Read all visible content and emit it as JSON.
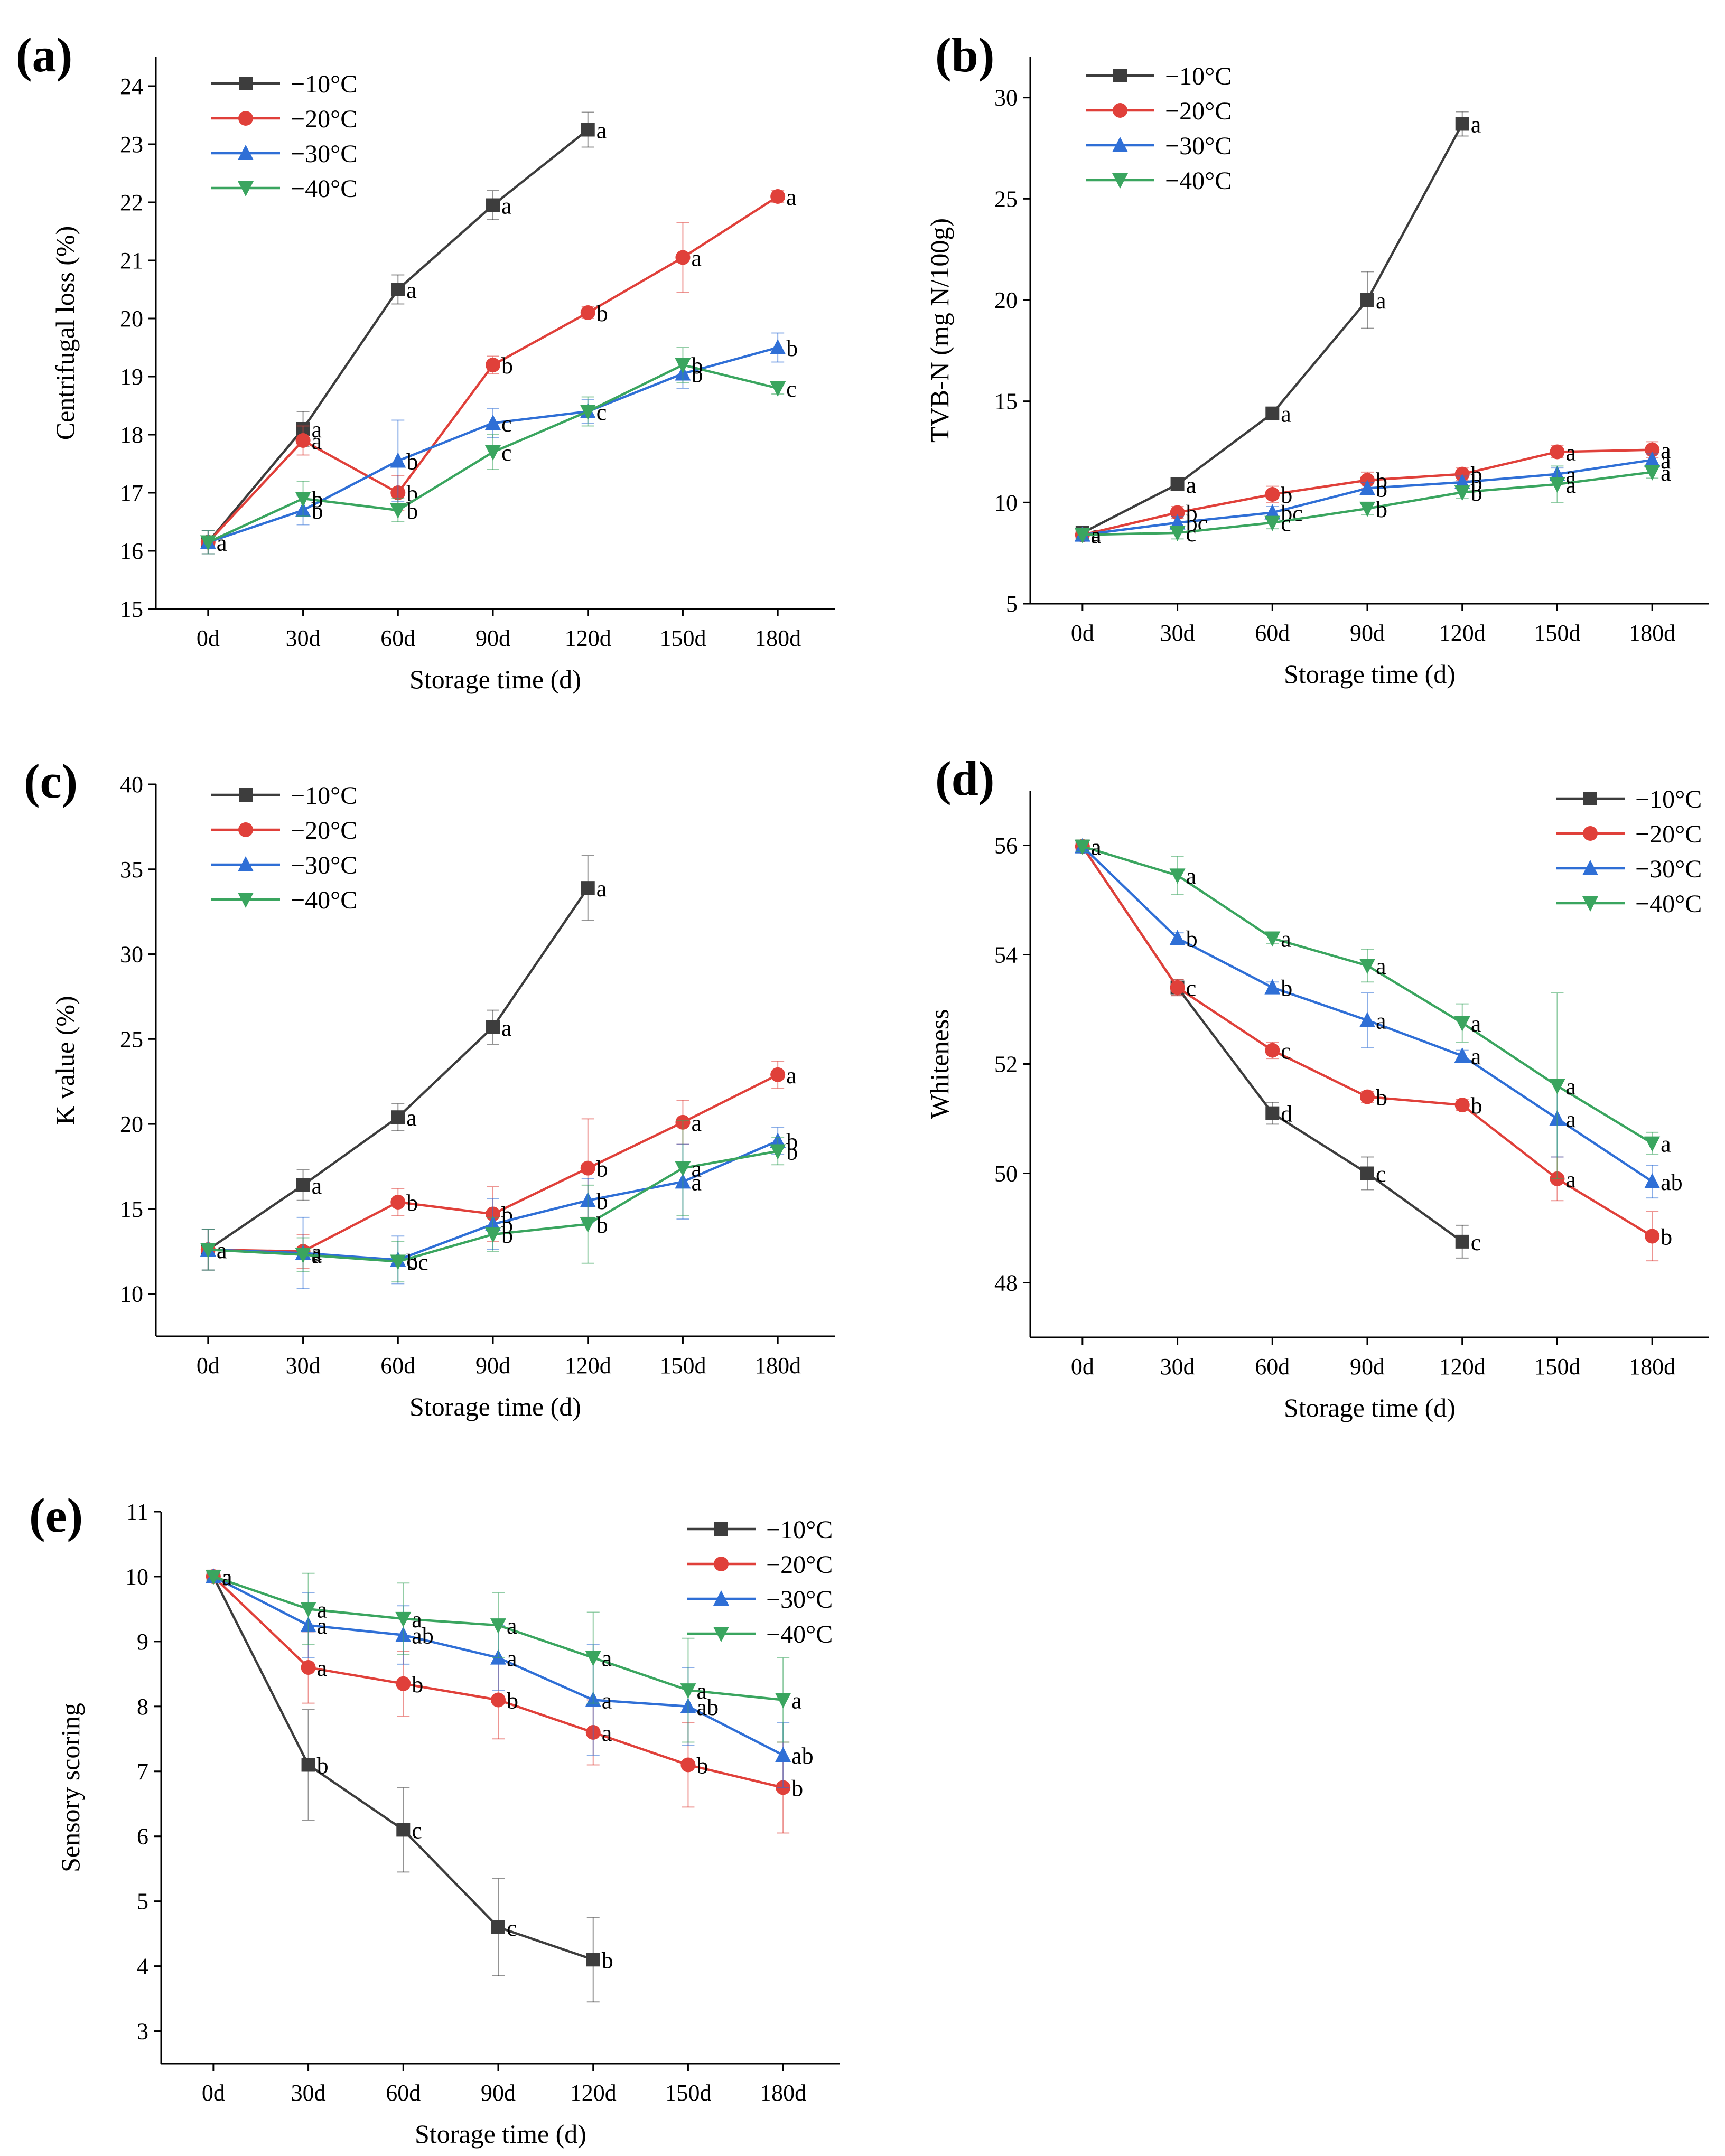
{
  "figure": {
    "panels": [
      "a",
      "b",
      "c",
      "d",
      "e"
    ]
  },
  "chart_data": [
    {
      "id": "a",
      "panel_label": "(a)",
      "type": "line",
      "xlabel": "Storage time (d)",
      "ylabel": "Centrifugal loss (%)",
      "categories": [
        "0d",
        "30d",
        "60d",
        "90d",
        "120d",
        "150d",
        "180d"
      ],
      "ylim": [
        15,
        24.5
      ],
      "yticks": [
        15,
        16,
        17,
        18,
        19,
        20,
        21,
        22,
        23,
        24
      ],
      "legend_position": "top-left",
      "series": [
        {
          "name": "−10°C",
          "color": "#3d3d3d",
          "marker": "square",
          "values": [
            16.15,
            18.1,
            20.5,
            21.95,
            23.25,
            null,
            null
          ],
          "errors": [
            0.2,
            0.3,
            0.25,
            0.25,
            0.3,
            null,
            null
          ],
          "labels": [
            "a",
            "a",
            "a",
            "a",
            "a",
            null,
            null
          ]
        },
        {
          "name": "−20°C",
          "color": "#e0403a",
          "marker": "circle",
          "values": [
            16.15,
            17.9,
            17.0,
            19.2,
            20.1,
            21.05,
            22.1
          ],
          "errors": [
            0.2,
            0.25,
            0.3,
            0.15,
            0.1,
            0.6,
            0.1
          ],
          "labels": [
            "a",
            "a",
            "b",
            "b",
            "b",
            "a",
            "a"
          ]
        },
        {
          "name": "−30°C",
          "color": "#2f6fd6",
          "marker": "triangle-up",
          "values": [
            16.15,
            16.7,
            17.55,
            18.2,
            18.4,
            19.05,
            19.5
          ],
          "errors": [
            0.2,
            0.25,
            0.7,
            0.25,
            0.2,
            0.25,
            0.25
          ],
          "labels": [
            "a",
            "b",
            "b",
            "c",
            "c",
            "b",
            "b"
          ]
        },
        {
          "name": "−40°C",
          "color": "#3aa55f",
          "marker": "triangle-down",
          "values": [
            16.15,
            16.9,
            16.7,
            17.7,
            18.4,
            19.2,
            18.8
          ],
          "errors": [
            0.2,
            0.3,
            0.2,
            0.3,
            0.25,
            0.3,
            0.1
          ],
          "labels": [
            "a",
            "b",
            "b",
            "c",
            "c",
            "b",
            "c"
          ]
        }
      ]
    },
    {
      "id": "b",
      "panel_label": "(b)",
      "type": "line",
      "xlabel": "Storage time (d)",
      "ylabel": "TVB-N (mg N/100g)",
      "categories": [
        "0d",
        "30d",
        "60d",
        "90d",
        "120d",
        "150d",
        "180d"
      ],
      "ylim": [
        5,
        32
      ],
      "yticks": [
        5,
        10,
        15,
        20,
        25,
        30
      ],
      "legend_position": "top-left",
      "series": [
        {
          "name": "−10°C",
          "color": "#3d3d3d",
          "marker": "square",
          "values": [
            8.5,
            10.9,
            14.4,
            20.0,
            28.7,
            null,
            null
          ],
          "errors": [
            0.2,
            0.2,
            0.3,
            1.4,
            0.6,
            null,
            null
          ],
          "labels": [
            "a",
            "a",
            "a",
            "a",
            "a",
            null,
            null
          ]
        },
        {
          "name": "−20°C",
          "color": "#e0403a",
          "marker": "circle",
          "values": [
            8.4,
            9.5,
            10.4,
            11.1,
            11.4,
            12.5,
            12.6
          ],
          "errors": [
            0.2,
            0.3,
            0.4,
            0.4,
            0.3,
            0.3,
            0.4
          ],
          "labels": [
            "a",
            "b",
            "b",
            "b",
            "b",
            "a",
            "a"
          ]
        },
        {
          "name": "−30°C",
          "color": "#2f6fd6",
          "marker": "triangle-up",
          "values": [
            8.4,
            9.0,
            9.5,
            10.7,
            11.0,
            11.4,
            12.1
          ],
          "errors": [
            0.2,
            0.3,
            0.3,
            0.3,
            0.3,
            0.3,
            0.3
          ],
          "labels": [
            "a",
            "bc",
            "bc",
            "b",
            "b",
            "a",
            "a"
          ]
        },
        {
          "name": "−40°C",
          "color": "#3aa55f",
          "marker": "triangle-down",
          "values": [
            8.4,
            8.5,
            9.0,
            9.7,
            10.5,
            10.9,
            11.5
          ],
          "errors": [
            0.2,
            0.3,
            0.3,
            0.3,
            0.3,
            0.9,
            0.3
          ],
          "labels": [
            "a",
            "c",
            "c",
            "b",
            "b",
            "a",
            "a"
          ]
        }
      ]
    },
    {
      "id": "c",
      "panel_label": "(c)",
      "type": "line",
      "xlabel": "Storage time (d)",
      "ylabel": "K value (%)",
      "categories": [
        "0d",
        "30d",
        "60d",
        "90d",
        "120d",
        "150d",
        "180d"
      ],
      "ylim": [
        7.5,
        40
      ],
      "yticks": [
        10,
        15,
        20,
        25,
        30,
        35,
        40
      ],
      "legend_position": "top-left",
      "series": [
        {
          "name": "−10°C",
          "color": "#3d3d3d",
          "marker": "square",
          "values": [
            12.6,
            16.4,
            20.4,
            25.7,
            33.9,
            null,
            null
          ],
          "errors": [
            1.2,
            0.9,
            0.8,
            1.0,
            1.9,
            null,
            null
          ],
          "labels": [
            "a",
            "a",
            "a",
            "a",
            "a",
            null,
            null
          ]
        },
        {
          "name": "−20°C",
          "color": "#e0403a",
          "marker": "circle",
          "values": [
            12.6,
            12.5,
            15.4,
            14.7,
            17.4,
            20.1,
            22.9
          ],
          "errors": [
            1.2,
            1.0,
            0.8,
            1.6,
            2.9,
            1.3,
            0.8
          ],
          "labels": [
            "a",
            "a",
            "b",
            "b",
            "b",
            "a",
            "a"
          ]
        },
        {
          "name": "−30°C",
          "color": "#2f6fd6",
          "marker": "triangle-up",
          "values": [
            12.6,
            12.4,
            12.0,
            14.1,
            15.5,
            16.6,
            19.0
          ],
          "errors": [
            1.2,
            2.1,
            1.4,
            1.5,
            1.3,
            2.2,
            0.8
          ],
          "labels": [
            "a",
            "a",
            "c",
            "b",
            "b",
            "a",
            "b"
          ]
        },
        {
          "name": "−40°C",
          "color": "#3aa55f",
          "marker": "triangle-down",
          "values": [
            12.6,
            12.3,
            11.9,
            13.5,
            14.1,
            17.4,
            18.4
          ],
          "errors": [
            1.2,
            1.0,
            1.2,
            1.0,
            2.3,
            2.8,
            0.8
          ],
          "labels": [
            "a",
            "a",
            "bc",
            "b",
            "b",
            "a",
            "b"
          ]
        }
      ]
    },
    {
      "id": "d",
      "panel_label": "(d)",
      "type": "line",
      "xlabel": "Storage time (d)",
      "ylabel": "Whiteness",
      "categories": [
        "0d",
        "30d",
        "60d",
        "90d",
        "120d",
        "150d",
        "180d"
      ],
      "ylim": [
        47,
        57
      ],
      "yticks": [
        48,
        50,
        52,
        54,
        56
      ],
      "legend_position": "top-right",
      "series": [
        {
          "name": "−10°C",
          "color": "#3d3d3d",
          "marker": "square",
          "values": [
            55.98,
            53.4,
            51.1,
            50.0,
            48.75,
            null,
            null
          ],
          "errors": [
            0.1,
            0.15,
            0.2,
            0.3,
            0.3,
            null,
            null
          ],
          "labels": [
            "a",
            "c",
            "d",
            "c",
            "c",
            null,
            null
          ]
        },
        {
          "name": "−20°C",
          "color": "#e0403a",
          "marker": "circle",
          "values": [
            55.98,
            53.4,
            52.25,
            51.4,
            51.25,
            49.9,
            48.85
          ],
          "errors": [
            0.1,
            0.15,
            0.15,
            0.1,
            0.1,
            0.4,
            0.45
          ],
          "labels": [
            "a",
            "c",
            "c",
            "b",
            "b",
            "a",
            "b"
          ]
        },
        {
          "name": "−30°C",
          "color": "#2f6fd6",
          "marker": "triangle-up",
          "values": [
            55.98,
            54.3,
            53.4,
            52.8,
            52.15,
            51.0,
            49.85
          ],
          "errors": [
            0.1,
            0.1,
            0.1,
            0.5,
            0.1,
            0.7,
            0.3
          ],
          "labels": [
            "a",
            "b",
            "b",
            "a",
            "a",
            "a",
            "ab"
          ]
        },
        {
          "name": "−40°C",
          "color": "#3aa55f",
          "marker": "triangle-down",
          "values": [
            55.98,
            55.45,
            54.3,
            53.8,
            52.75,
            51.6,
            50.55
          ],
          "errors": [
            0.1,
            0.35,
            0.1,
            0.3,
            0.35,
            1.7,
            0.2
          ],
          "labels": [
            "a",
            "a",
            "a",
            "a",
            "a",
            "a",
            "a"
          ]
        }
      ]
    },
    {
      "id": "e",
      "panel_label": "(e)",
      "type": "line",
      "xlabel": "Storage time (d)",
      "ylabel": "Sensory scoring",
      "categories": [
        "0d",
        "30d",
        "60d",
        "90d",
        "120d",
        "150d",
        "180d"
      ],
      "ylim": [
        2.5,
        11
      ],
      "yticks": [
        3,
        4,
        5,
        6,
        7,
        8,
        9,
        10,
        11
      ],
      "legend_position": "top-right",
      "series": [
        {
          "name": "−10°C",
          "color": "#3d3d3d",
          "marker": "square",
          "values": [
            10.0,
            7.1,
            6.1,
            4.6,
            4.1,
            null,
            null
          ],
          "errors": [
            0.05,
            0.85,
            0.65,
            0.75,
            0.65,
            null,
            null
          ],
          "labels": [
            "a",
            "b",
            "c",
            "c",
            "b",
            null,
            null
          ]
        },
        {
          "name": "−20°C",
          "color": "#e0403a",
          "marker": "circle",
          "values": [
            10.0,
            8.6,
            8.35,
            8.1,
            7.6,
            7.1,
            6.75
          ],
          "errors": [
            0.05,
            0.55,
            0.5,
            0.6,
            0.5,
            0.65,
            0.7
          ],
          "labels": [
            "a",
            "a",
            "b",
            "b",
            "a",
            "b",
            "b"
          ]
        },
        {
          "name": "−30°C",
          "color": "#2f6fd6",
          "marker": "triangle-up",
          "values": [
            10.0,
            9.25,
            9.1,
            8.75,
            8.1,
            8.0,
            7.25
          ],
          "errors": [
            0.05,
            0.5,
            0.45,
            0.5,
            0.85,
            0.6,
            0.5
          ],
          "labels": [
            "a",
            "a",
            "ab",
            "a",
            "a",
            "ab",
            "ab"
          ]
        },
        {
          "name": "−40°C",
          "color": "#3aa55f",
          "marker": "triangle-down",
          "values": [
            10.0,
            9.5,
            9.35,
            9.25,
            8.75,
            8.25,
            8.1
          ],
          "errors": [
            0.05,
            0.55,
            0.55,
            0.5,
            0.7,
            0.8,
            0.65
          ],
          "labels": [
            "a",
            "a",
            "a",
            "a",
            "a",
            "a",
            "a"
          ]
        }
      ]
    }
  ]
}
